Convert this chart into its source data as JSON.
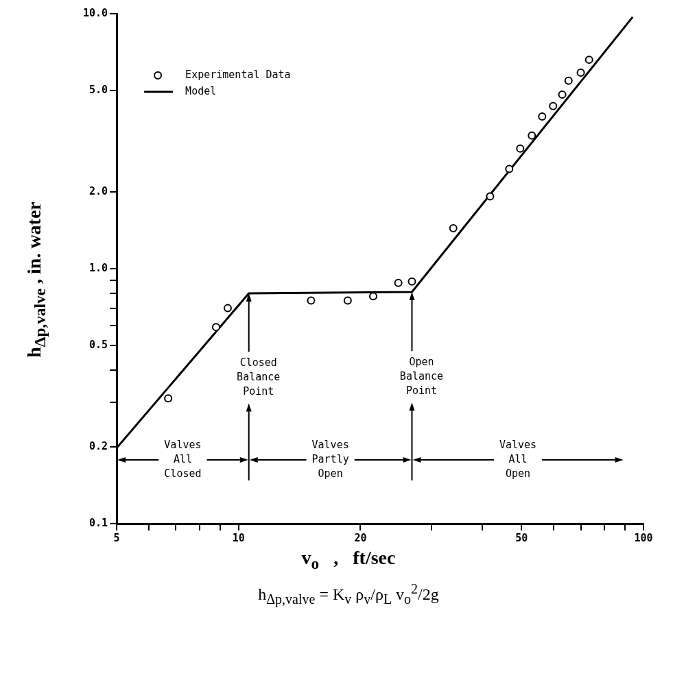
{
  "chart_data": {
    "type": "scatter",
    "xlabel": "v$_{o}$   ,   ft/sec",
    "ylabel": "h$_{Δp,valve}$   ,   in. water",
    "log": "xy",
    "grid": false,
    "legend": "top left",
    "xlim": [
      5,
      100
    ],
    "xticks": [
      5,
      {
        "value": 6,
        "label": null
      },
      {
        "value": 7,
        "label": null
      },
      {
        "value": 8,
        "label": null
      },
      {
        "value": 9,
        "label": null
      },
      10,
      20,
      {
        "value": 30,
        "label": null
      },
      {
        "value": 40,
        "label": null
      },
      50,
      {
        "value": 60,
        "label": null
      },
      {
        "value": 70,
        "label": null
      },
      {
        "value": 80,
        "label": null
      },
      {
        "value": 90,
        "label": null
      },
      100
    ],
    "ylim": [
      0.1,
      10
    ],
    "yticks": [
      0.1,
      0.2,
      {
        "value": 0.3,
        "label": null
      },
      {
        "value": 0.4,
        "label": null
      },
      0.5,
      {
        "value": 0.6,
        "label": null
      },
      {
        "value": 0.7,
        "label": null
      },
      {
        "value": 0.8,
        "label": null
      },
      {
        "value": 0.9,
        "label": null
      },
      {
        "value": 1,
        "label": "1.0"
      },
      {
        "value": 2,
        "label": "2.0"
      },
      {
        "value": 5,
        "label": "5.0"
      },
      {
        "value": 10,
        "label": "10.0"
      }
    ],
    "series": [
      {
        "name": "Experimental Data",
        "marker": "circle",
        "color": "#000000",
        "x": [
          6.7,
          8.8,
          9.4,
          15.1,
          18.6,
          21.5,
          24.8,
          26.8,
          33.9,
          41.8,
          46.6,
          49.6,
          53,
          56.2,
          59.8,
          63,
          65.3,
          70,
          73.4
        ],
        "values": [
          0.31,
          0.59,
          0.7,
          0.75,
          0.75,
          0.78,
          0.88,
          0.89,
          1.44,
          1.92,
          2.46,
          2.96,
          3.33,
          3.95,
          4.34,
          4.82,
          5.46,
          5.87,
          6.6
        ]
      },
      {
        "name": "Model",
        "type": "line",
        "marker": "none",
        "line_style": "solid",
        "color": "#000000",
        "x": [
          5,
          10.6,
          26.8,
          94
        ],
        "values": [
          0.198,
          0.8,
          0.81,
          9.7
        ]
      }
    ],
    "annotations": [
      "Closed Balance Point",
      "Open Balance Point",
      "Valves All Closed",
      "Valves Partly Open",
      "Valves All Open",
      "h$_{Δp,valve}$ = K$_{v}$ ρ$_{v}$/ρ$_{L}$ v$_{o}$$^{2}$/2g"
    ]
  }
}
